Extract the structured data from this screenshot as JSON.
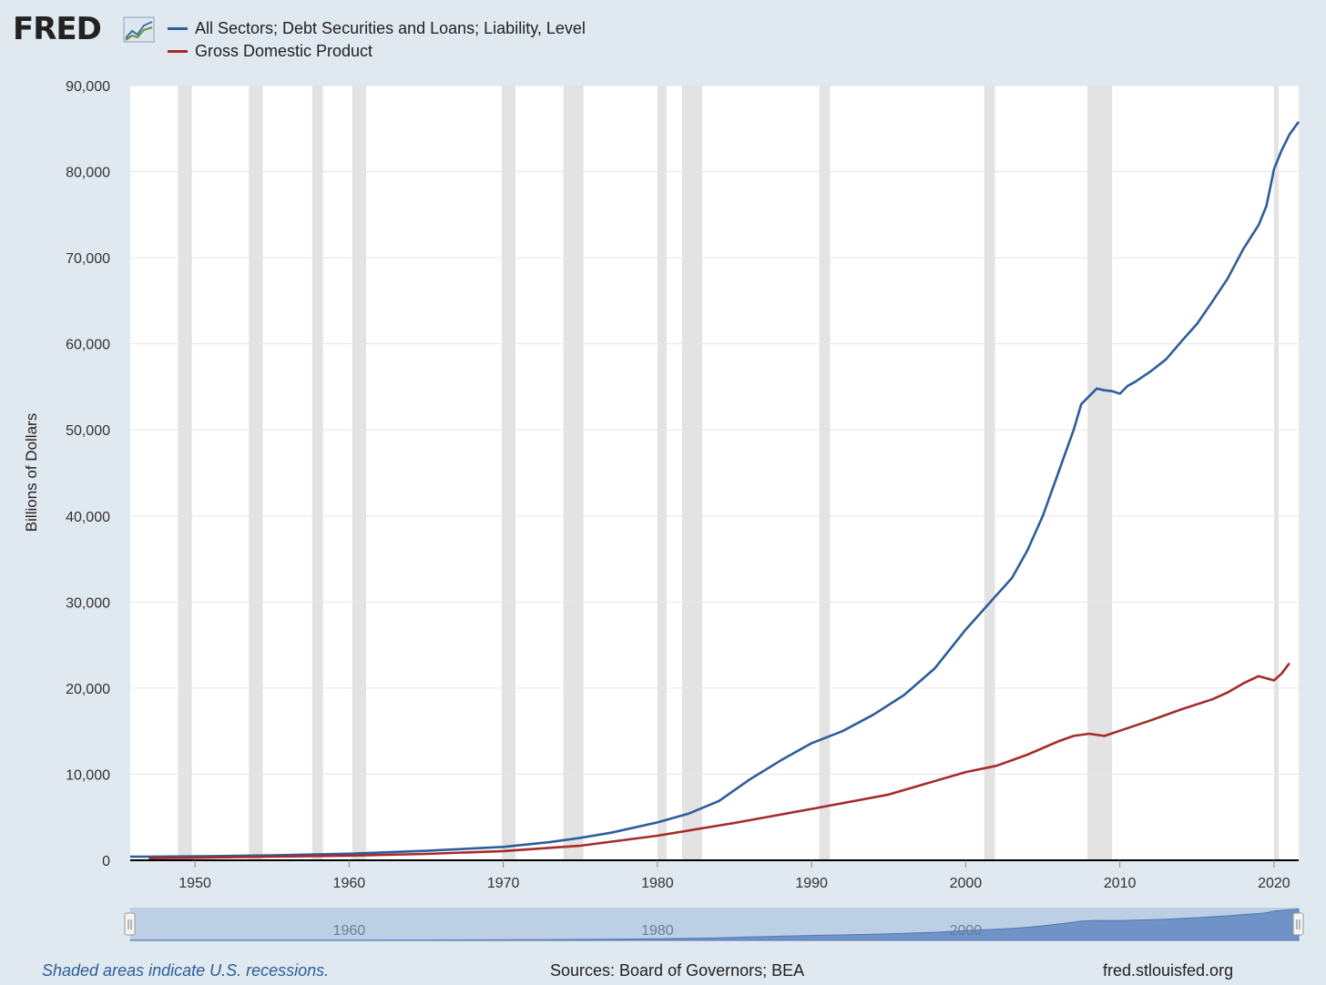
{
  "header": {
    "logo_text": "FRED",
    "logo_icon": "graph-trend-icon"
  },
  "footer": {
    "recession_note": "Shaded areas indicate U.S. recessions.",
    "sources": "Sources: Board of Governors; BEA",
    "site": "fred.stlouisfed.org"
  },
  "navigator": {
    "tick_labels": [
      "1960",
      "1980",
      "2000"
    ],
    "handle_left_icon": "drag-handle-icon",
    "handle_right_icon": "drag-handle-icon"
  },
  "colors": {
    "debt": "#2d5d9a",
    "gdp": "#a52b2b",
    "recession": "#e3e3e3",
    "background": "#e1e9f0"
  },
  "chart_data": {
    "type": "line",
    "title": "",
    "xlabel": "",
    "ylabel": "Billions of Dollars",
    "xlim": [
      1945.8,
      2021.6
    ],
    "ylim": [
      0,
      90000
    ],
    "yticks": [
      0,
      10000,
      20000,
      30000,
      40000,
      50000,
      60000,
      70000,
      80000,
      90000
    ],
    "ytick_labels": [
      "0",
      "10,000",
      "20,000",
      "30,000",
      "40,000",
      "50,000",
      "60,000",
      "70,000",
      "80,000",
      "90,000"
    ],
    "xticks": [
      1950,
      1960,
      1970,
      1980,
      1990,
      2000,
      2010,
      2020
    ],
    "xtick_labels": [
      "1950",
      "1960",
      "1970",
      "1980",
      "1990",
      "2000",
      "2010",
      "2020"
    ],
    "grid": true,
    "legend": "top-left",
    "recessions": [
      [
        1948.9,
        1949.8
      ],
      [
        1953.5,
        1954.4
      ],
      [
        1957.6,
        1958.3
      ],
      [
        1960.2,
        1961.1
      ],
      [
        1969.9,
        1970.8
      ],
      [
        1973.9,
        1975.2
      ],
      [
        1980.0,
        1980.6
      ],
      [
        1981.6,
        1982.9
      ],
      [
        1990.5,
        1991.2
      ],
      [
        2001.2,
        2001.9
      ],
      [
        2007.9,
        2009.5
      ],
      [
        2020.0,
        2020.3
      ]
    ],
    "series": [
      {
        "name": "All Sectors; Debt Securities and Loans; Liability, Level",
        "color": "#2d5d9a",
        "points": [
          [
            1945.8,
            420
          ],
          [
            1946.8,
            420
          ],
          [
            1952,
            500
          ],
          [
            1955,
            580
          ],
          [
            1960,
            760
          ],
          [
            1965,
            1100
          ],
          [
            1970,
            1550
          ],
          [
            1973,
            2100
          ],
          [
            1975,
            2600
          ],
          [
            1977,
            3200
          ],
          [
            1980,
            4400
          ],
          [
            1982,
            5400
          ],
          [
            1984,
            6900
          ],
          [
            1986,
            9400
          ],
          [
            1988,
            11600
          ],
          [
            1990,
            13600
          ],
          [
            1992,
            15000
          ],
          [
            1994,
            16900
          ],
          [
            1996,
            19200
          ],
          [
            1998,
            22300
          ],
          [
            2000,
            26800
          ],
          [
            2002,
            30800
          ],
          [
            2003,
            32800
          ],
          [
            2004,
            36000
          ],
          [
            2005,
            40000
          ],
          [
            2006,
            45000
          ],
          [
            2007,
            50000
          ],
          [
            2007.5,
            53000
          ],
          [
            2008,
            53900
          ],
          [
            2008.5,
            54800
          ],
          [
            2009,
            54600
          ],
          [
            2009.5,
            54500
          ],
          [
            2010,
            54200
          ],
          [
            2010.5,
            55100
          ],
          [
            2011,
            55600
          ],
          [
            2012,
            56800
          ],
          [
            2013,
            58200
          ],
          [
            2014,
            60300
          ],
          [
            2015,
            62300
          ],
          [
            2016,
            64900
          ],
          [
            2017,
            67600
          ],
          [
            2018,
            71000
          ],
          [
            2019,
            73800
          ],
          [
            2019.5,
            76000
          ],
          [
            2019.8,
            78500
          ],
          [
            2020.0,
            80300
          ],
          [
            2020.5,
            82500
          ],
          [
            2021.0,
            84300
          ],
          [
            2021.6,
            85800
          ]
        ]
      },
      {
        "name": "Gross Domestic Product",
        "color": "#a52b2b",
        "points": [
          [
            1947,
            245
          ],
          [
            1950,
            300
          ],
          [
            1955,
            430
          ],
          [
            1960,
            540
          ],
          [
            1965,
            740
          ],
          [
            1970,
            1070
          ],
          [
            1975,
            1690
          ],
          [
            1980,
            2860
          ],
          [
            1985,
            4340
          ],
          [
            1990,
            5960
          ],
          [
            1995,
            7640
          ],
          [
            2000,
            10250
          ],
          [
            2002,
            10980
          ],
          [
            2004,
            12270
          ],
          [
            2006,
            13810
          ],
          [
            2007,
            14450
          ],
          [
            2008,
            14700
          ],
          [
            2009,
            14450
          ],
          [
            2010,
            15050
          ],
          [
            2012,
            16250
          ],
          [
            2014,
            17550
          ],
          [
            2016,
            18700
          ],
          [
            2017,
            19500
          ],
          [
            2018,
            20550
          ],
          [
            2019,
            21400
          ],
          [
            2020,
            20900
          ],
          [
            2020.5,
            21700
          ],
          [
            2021.0,
            22900
          ]
        ]
      }
    ]
  }
}
